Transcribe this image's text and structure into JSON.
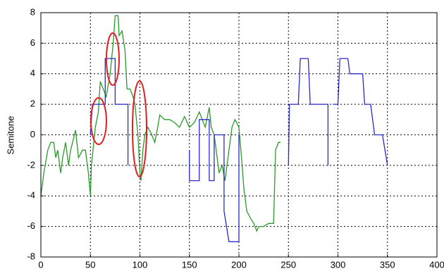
{
  "chart_data": {
    "type": "line",
    "y_label": "Semitone",
    "xlim": [
      0,
      400
    ],
    "ylim": [
      -8,
      8
    ],
    "xticks": [
      0,
      50,
      100,
      150,
      200,
      250,
      300,
      350,
      400
    ],
    "yticks": [
      -8,
      -6,
      -4,
      -2,
      0,
      2,
      4,
      6,
      8
    ],
    "grid": true,
    "series": [
      {
        "color": "#2a9a2a",
        "x": [
          0,
          3,
          7,
          10,
          13,
          15,
          17,
          20,
          22,
          25,
          28,
          30,
          32,
          35,
          38,
          42,
          45,
          48,
          50,
          51,
          55,
          58,
          60,
          63,
          66,
          70,
          73,
          75,
          78,
          79,
          82,
          85,
          87,
          90,
          93,
          95,
          98,
          100,
          101,
          103,
          105,
          108,
          112,
          115,
          118,
          120,
          125,
          130,
          135,
          140,
          145,
          150,
          155,
          160,
          163,
          166,
          170,
          172,
          175,
          178,
          180,
          183,
          186,
          190,
          193,
          196,
          200,
          202,
          205,
          208,
          212,
          215,
          218,
          220,
          225,
          230,
          235,
          237,
          240,
          242
        ],
        "values": [
          -4,
          -2.5,
          -1,
          -0.5,
          -0.5,
          -1.5,
          -1,
          -2.5,
          -1.5,
          -0.5,
          -2,
          -1,
          -0.5,
          0.3,
          -1.5,
          -1,
          -1,
          -2.5,
          -4,
          -2,
          0.5,
          1.5,
          3.5,
          3,
          2.5,
          4,
          6,
          7.8,
          7.8,
          6.5,
          6.8,
          5.5,
          3,
          3,
          2.5,
          2,
          0,
          -2.5,
          -3,
          -1,
          0,
          0.5,
          0,
          -0.5,
          0.5,
          1.3,
          1,
          1,
          0.8,
          0.5,
          1.2,
          0.5,
          0.8,
          1.5,
          1,
          0.5,
          1.8,
          0.5,
          0,
          -1.5,
          -2.5,
          -2,
          -3,
          -1,
          0.5,
          1,
          0.5,
          -1,
          -3.5,
          -5,
          -5.5,
          -5.8,
          -6.3,
          -6,
          -6,
          -5.8,
          -5.8,
          -1,
          -0.5,
          -0.5
        ]
      },
      {
        "color": "#2a2ad0",
        "x": [
          50,
          52,
          65,
          65,
          75,
          75,
          88,
          88,
          89,
          150,
          150,
          160,
          160,
          170,
          170,
          175,
          175,
          185,
          185,
          190,
          200,
          200,
          201,
          250,
          251,
          260,
          262,
          270,
          272,
          290,
          290,
          291,
          295,
          300,
          302,
          310,
          312,
          325,
          327,
          333,
          337,
          345,
          350
        ],
        "values": [
          0,
          2,
          2,
          5,
          5,
          2,
          2,
          -2,
          null,
          -1,
          -3,
          -3,
          1,
          1,
          -3,
          -3,
          0,
          0,
          -5,
          -7,
          -7,
          0,
          null,
          -2,
          2,
          2,
          5,
          5,
          2,
          2,
          -2,
          null,
          2,
          2,
          5,
          5,
          4,
          4,
          2,
          2,
          0,
          0,
          -2
        ]
      }
    ]
  }
}
